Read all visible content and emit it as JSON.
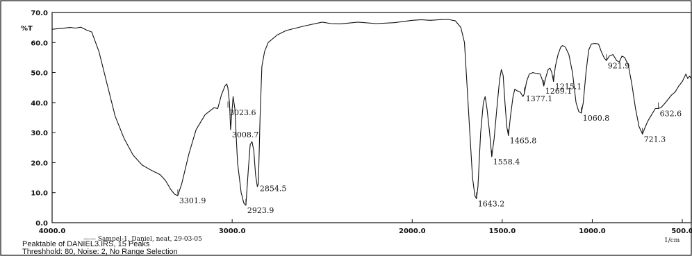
{
  "chart_data": {
    "type": "line",
    "title": "",
    "ylabel": "%T",
    "xlabel": "1/cm",
    "xlim": [
      4000,
      450
    ],
    "ylim": [
      0,
      70
    ],
    "grid": false,
    "x_ticks": [
      "4000.0",
      "3000.0",
      "2000.0",
      "1500.0",
      "1000.0",
      "500.0"
    ],
    "x_tick_values": [
      4000,
      3000,
      2000,
      1500,
      1000,
      500
    ],
    "y_ticks": [
      "0.0",
      "10.0",
      "20.0",
      "30.0",
      "40.0",
      "50.0",
      "60.0",
      "70.0"
    ],
    "y_tick_values": [
      0,
      10,
      20,
      30,
      40,
      50,
      60,
      70
    ],
    "series": [
      {
        "name": "Sampel-1, Daniel, neat, 29-03-05",
        "color": "#111111",
        "points": [
          [
            4000,
            64.4
          ],
          [
            3950,
            64.7
          ],
          [
            3900,
            65.0
          ],
          [
            3870,
            64.8
          ],
          [
            3840,
            65.1
          ],
          [
            3810,
            64.2
          ],
          [
            3780,
            63.5
          ],
          [
            3740,
            57.0
          ],
          [
            3700,
            47.5
          ],
          [
            3650,
            35.5
          ],
          [
            3600,
            28.0
          ],
          [
            3550,
            22.5
          ],
          [
            3500,
            19.2
          ],
          [
            3450,
            17.5
          ],
          [
            3400,
            16.0
          ],
          [
            3370,
            14.0
          ],
          [
            3340,
            11.0
          ],
          [
            3320,
            9.5
          ],
          [
            3302,
            9.0
          ],
          [
            3280,
            13.0
          ],
          [
            3240,
            23.0
          ],
          [
            3200,
            31.0
          ],
          [
            3150,
            36.0
          ],
          [
            3100,
            38.3
          ],
          [
            3080,
            38.0
          ],
          [
            3060,
            42.5
          ],
          [
            3040,
            45.5
          ],
          [
            3030,
            46.2
          ],
          [
            3024,
            45.0
          ],
          [
            3015,
            40.0
          ],
          [
            3008.7,
            31.0
          ],
          [
            3000,
            38.0
          ],
          [
            2995,
            42.0
          ],
          [
            2985,
            38.0
          ],
          [
            2970,
            20.0
          ],
          [
            2950,
            10.0
          ],
          [
            2935,
            6.5
          ],
          [
            2923.9,
            5.8
          ],
          [
            2910,
            18.0
          ],
          [
            2900,
            26.0
          ],
          [
            2890,
            27.0
          ],
          [
            2880,
            24.0
          ],
          [
            2870,
            16.0
          ],
          [
            2860,
            12.0
          ],
          [
            2854.5,
            13.0
          ],
          [
            2845,
            35.0
          ],
          [
            2835,
            52.0
          ],
          [
            2820,
            57.0
          ],
          [
            2800,
            60.0
          ],
          [
            2750,
            62.5
          ],
          [
            2700,
            64.0
          ],
          [
            2600,
            65.5
          ],
          [
            2500,
            66.8
          ],
          [
            2450,
            66.3
          ],
          [
            2400,
            66.2
          ],
          [
            2300,
            66.8
          ],
          [
            2200,
            66.3
          ],
          [
            2100,
            66.6
          ],
          [
            2000,
            67.4
          ],
          [
            1950,
            67.6
          ],
          [
            1900,
            67.4
          ],
          [
            1850,
            67.6
          ],
          [
            1800,
            67.7
          ],
          [
            1760,
            67.2
          ],
          [
            1730,
            65.0
          ],
          [
            1710,
            60.0
          ],
          [
            1695,
            45.0
          ],
          [
            1680,
            30.0
          ],
          [
            1665,
            15.0
          ],
          [
            1652,
            9.0
          ],
          [
            1643.2,
            8.0
          ],
          [
            1635,
            12.0
          ],
          [
            1620,
            30.0
          ],
          [
            1605,
            40.0
          ],
          [
            1595,
            42.0
          ],
          [
            1585,
            38.0
          ],
          [
            1570,
            30.0
          ],
          [
            1558.4,
            22.0
          ],
          [
            1545,
            28.0
          ],
          [
            1530,
            38.0
          ],
          [
            1515,
            47.5
          ],
          [
            1505,
            51.0
          ],
          [
            1495,
            49.0
          ],
          [
            1485,
            40.0
          ],
          [
            1475,
            32.0
          ],
          [
            1465.8,
            29.0
          ],
          [
            1455,
            35.0
          ],
          [
            1440,
            42.0
          ],
          [
            1430,
            44.5
          ],
          [
            1420,
            44.0
          ],
          [
            1400,
            43.5
          ],
          [
            1385,
            42.0
          ],
          [
            1377.1,
            43.0
          ],
          [
            1365,
            47.0
          ],
          [
            1350,
            49.5
          ],
          [
            1330,
            50.0
          ],
          [
            1310,
            49.7
          ],
          [
            1290,
            49.5
          ],
          [
            1280,
            48.0
          ],
          [
            1269.1,
            45.5
          ],
          [
            1260,
            48.0
          ],
          [
            1245,
            51.0
          ],
          [
            1235,
            51.5
          ],
          [
            1225,
            50.0
          ],
          [
            1215.1,
            47.0
          ],
          [
            1205,
            52.0
          ],
          [
            1190,
            56.0
          ],
          [
            1175,
            58.5
          ],
          [
            1165,
            59.0
          ],
          [
            1150,
            58.5
          ],
          [
            1130,
            56.0
          ],
          [
            1110,
            50.0
          ],
          [
            1090,
            40.0
          ],
          [
            1075,
            37.0
          ],
          [
            1060.8,
            36.5
          ],
          [
            1050,
            40.0
          ],
          [
            1035,
            50.0
          ],
          [
            1020,
            57.5
          ],
          [
            1005,
            59.5
          ],
          [
            985,
            59.7
          ],
          [
            965,
            59.5
          ],
          [
            950,
            57.0
          ],
          [
            935,
            55.0
          ],
          [
            921.9,
            54.0
          ],
          [
            905,
            55.5
          ],
          [
            885,
            56.0
          ],
          [
            865,
            54.0
          ],
          [
            850,
            53.5
          ],
          [
            835,
            55.5
          ],
          [
            820,
            55.0
          ],
          [
            800,
            52.5
          ],
          [
            780,
            46.0
          ],
          [
            760,
            38.0
          ],
          [
            740,
            32.0
          ],
          [
            721.3,
            29.5
          ],
          [
            705,
            32.0
          ],
          [
            690,
            34.0
          ],
          [
            670,
            36.0
          ],
          [
            650,
            38.0
          ],
          [
            632.6,
            38.0
          ],
          [
            615,
            38.5
          ],
          [
            600,
            39.5
          ],
          [
            580,
            41.0
          ],
          [
            560,
            42.5
          ],
          [
            540,
            43.5
          ],
          [
            520,
            45.5
          ],
          [
            500,
            47.0
          ],
          [
            480,
            49.5
          ],
          [
            470,
            48.0
          ],
          [
            460,
            48.8
          ],
          [
            450,
            48.0
          ]
        ]
      }
    ],
    "peak_labels": [
      {
        "x": 3301.9,
        "y": 9.0,
        "text": "3301.9"
      },
      {
        "x": 3023.6,
        "y": 38.3,
        "text": "3023.6"
      },
      {
        "x": 3008.7,
        "y": 31.0,
        "text": "3008.7"
      },
      {
        "x": 2923.9,
        "y": 5.8,
        "text": "2923.9"
      },
      {
        "x": 2854.5,
        "y": 13.0,
        "text": "2854.5"
      },
      {
        "x": 1643.2,
        "y": 8.0,
        "text": "1643.2"
      },
      {
        "x": 1558.4,
        "y": 22.0,
        "text": "1558.4"
      },
      {
        "x": 1465.8,
        "y": 29.0,
        "text": "1465.8"
      },
      {
        "x": 1377.1,
        "y": 43.0,
        "text": "1377.1"
      },
      {
        "x": 1269.1,
        "y": 45.5,
        "text": "1269.1"
      },
      {
        "x": 1215.1,
        "y": 47.0,
        "text": "1215.1"
      },
      {
        "x": 1060.8,
        "y": 36.5,
        "text": "1060.8"
      },
      {
        "x": 921.9,
        "y": 54.0,
        "text": "921.9"
      },
      {
        "x": 721.3,
        "y": 29.5,
        "text": "721.3"
      },
      {
        "x": 632.6,
        "y": 38.0,
        "text": "632.6"
      }
    ]
  },
  "footer": {
    "legend": "Sampel-1, Daniel, neat, 29-03-05",
    "line1": "Peaktable of DANIEL3.IRS, 15 Peaks",
    "line2": "Threshhold: 80, Noise: 2, No Range Selection"
  }
}
